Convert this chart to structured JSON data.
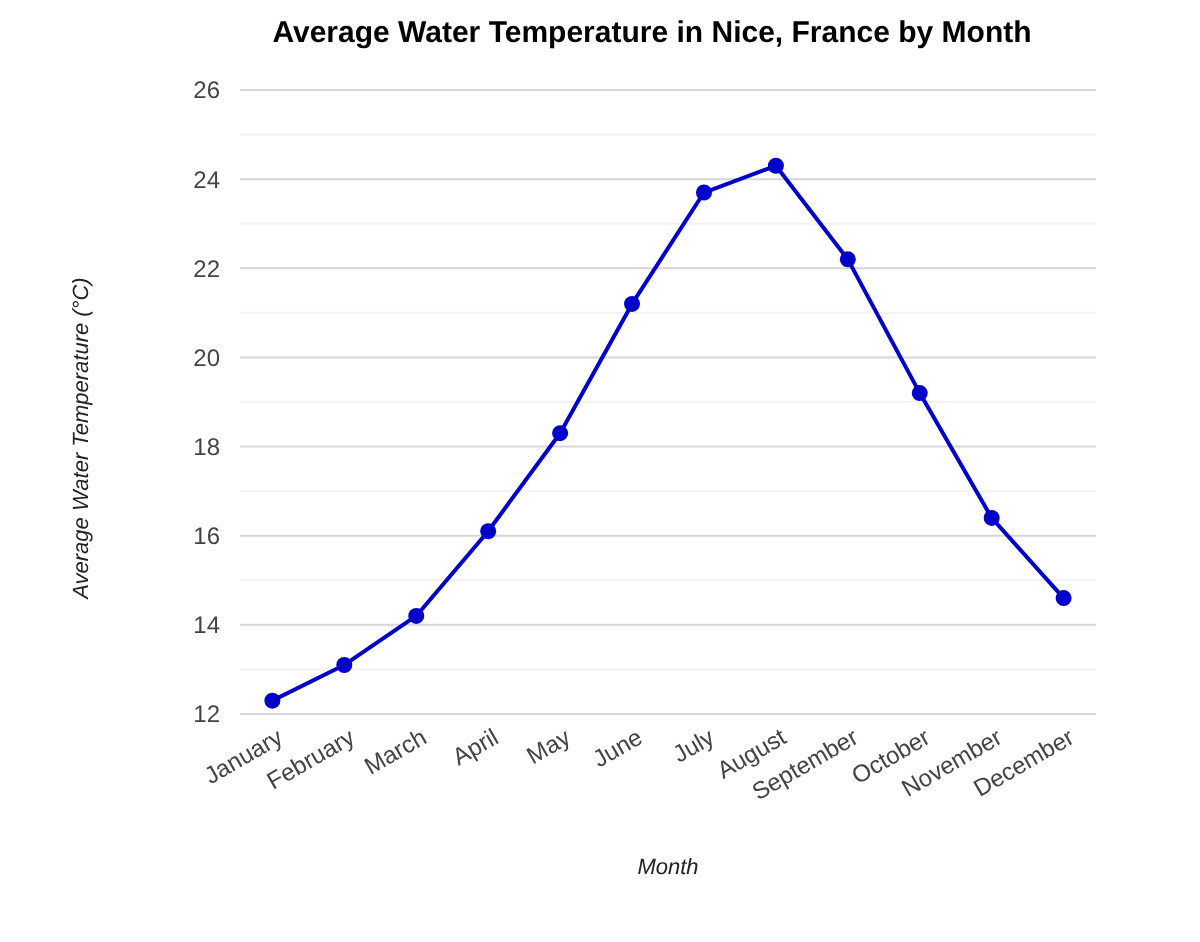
{
  "chart_data": {
    "type": "line",
    "title": "Average Water Temperature in Nice, France by Month",
    "xlabel": "Month",
    "ylabel": "Average Water Temperature (°C)",
    "categories": [
      "January",
      "February",
      "March",
      "April",
      "May",
      "June",
      "July",
      "August",
      "September",
      "October",
      "November",
      "December"
    ],
    "series": [
      {
        "color": "#0000c8",
        "values": [
          12.3,
          13.1,
          14.2,
          16.1,
          18.3,
          21.2,
          23.7,
          24.3,
          22.2,
          19.2,
          16.4,
          14.6
        ]
      }
    ],
    "ylim": [
      12,
      26
    ],
    "yticks": [
      12,
      {
        "value": 13,
        "label": null
      },
      14,
      {
        "value": 15,
        "label": null
      },
      16,
      {
        "value": 17,
        "label": null
      },
      18,
      {
        "value": 19,
        "label": null
      },
      20,
      {
        "value": 21,
        "label": null
      },
      22,
      {
        "value": 23,
        "label": null
      },
      24,
      {
        "value": 25,
        "label": null
      },
      26
    ],
    "grid": "y",
    "marker": "circle",
    "line_style": "solid"
  }
}
